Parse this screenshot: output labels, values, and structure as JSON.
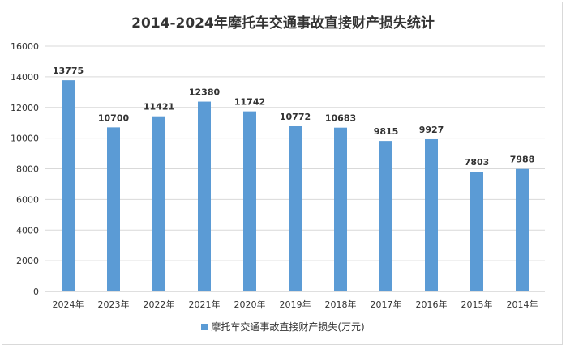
{
  "chart_data": {
    "type": "bar",
    "title": "2014-2024年摩托车交通事故直接财产损失统计",
    "categories": [
      "2024年",
      "2023年",
      "2022年",
      "2021年",
      "2020年",
      "2019年",
      "2018年",
      "2017年",
      "2016年",
      "2015年",
      "2014年"
    ],
    "series": [
      {
        "name": "摩托车交通事故直接财产损失(万元)",
        "values": [
          13775,
          10700,
          11421,
          12380,
          11742,
          10772,
          10683,
          9815,
          9927,
          7803,
          7988
        ]
      }
    ],
    "data_labels": [
      "13775",
      "10700",
      "11421",
      "12380",
      "11742",
      "10772",
      "10683",
      "9815",
      "9927",
      "7803",
      "7988"
    ],
    "y_ticks": [
      0,
      2000,
      4000,
      6000,
      8000,
      10000,
      12000,
      14000,
      16000
    ],
    "ylim": [
      0,
      16000
    ],
    "grid": true,
    "legend_position": "bottom",
    "bar_color": "#5b9bd5"
  }
}
